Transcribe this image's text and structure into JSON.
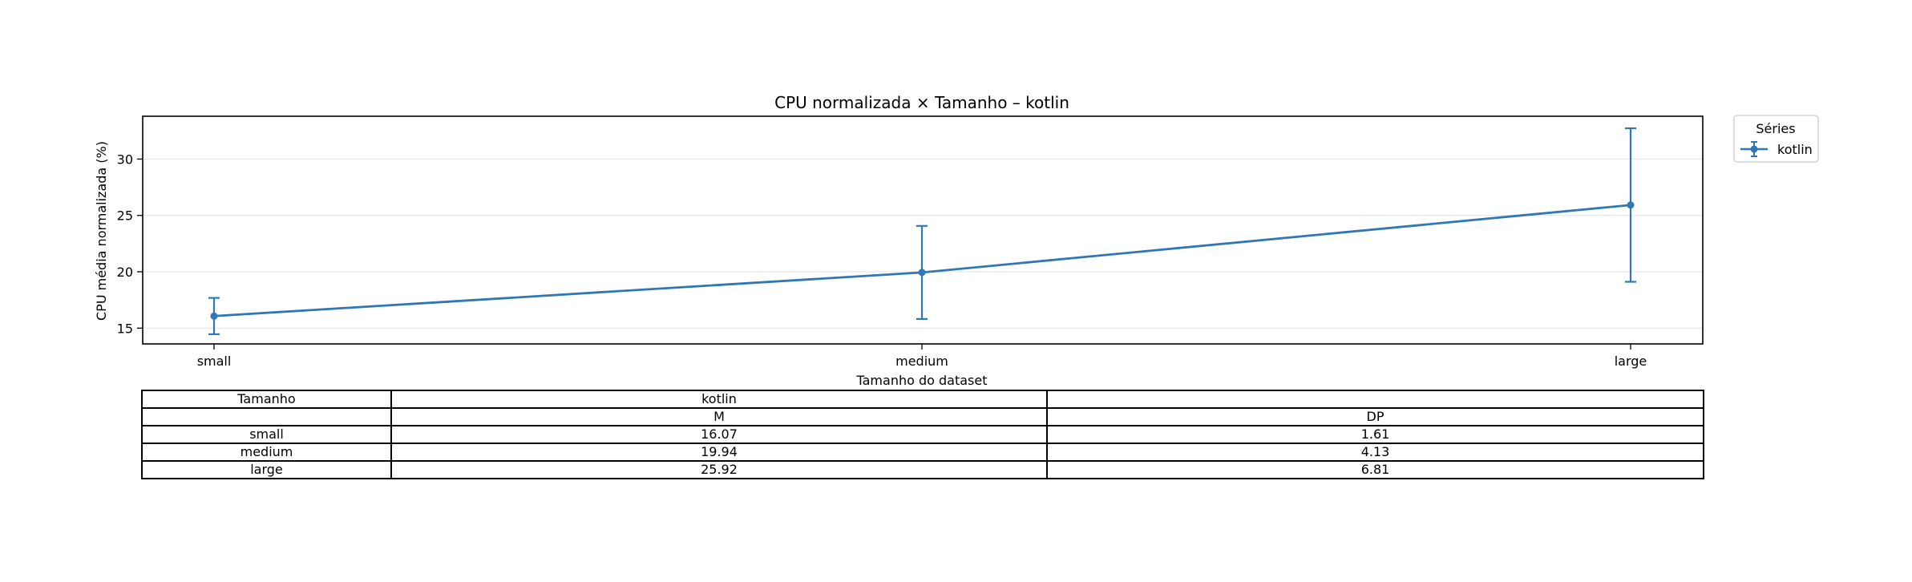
{
  "chart_data": {
    "type": "line",
    "title": "CPU normalizada × Tamanho – kotlin",
    "xlabel": "Tamanho do dataset",
    "ylabel": "CPU média normalizada (%)",
    "categories": [
      "small",
      "medium",
      "large"
    ],
    "ylim": [
      13.6,
      33.8
    ],
    "yticks": [
      15,
      20,
      25,
      30
    ],
    "grid": "horizontal",
    "legend": {
      "title": "Séries",
      "placement": "outside-top-right"
    },
    "series": [
      {
        "name": "kotlin",
        "color": "#2f78b5",
        "values": [
          16.07,
          19.94,
          25.92
        ],
        "error": [
          1.61,
          4.13,
          6.81
        ]
      }
    ]
  },
  "table": {
    "header_row1": [
      "Tamanho",
      "kotlin",
      ""
    ],
    "header_row2": [
      "",
      "M",
      "DP"
    ],
    "rows": [
      [
        "small",
        "16.07",
        "1.61"
      ],
      [
        "medium",
        "19.94",
        "4.13"
      ],
      [
        "large",
        "25.92",
        "6.81"
      ]
    ]
  }
}
